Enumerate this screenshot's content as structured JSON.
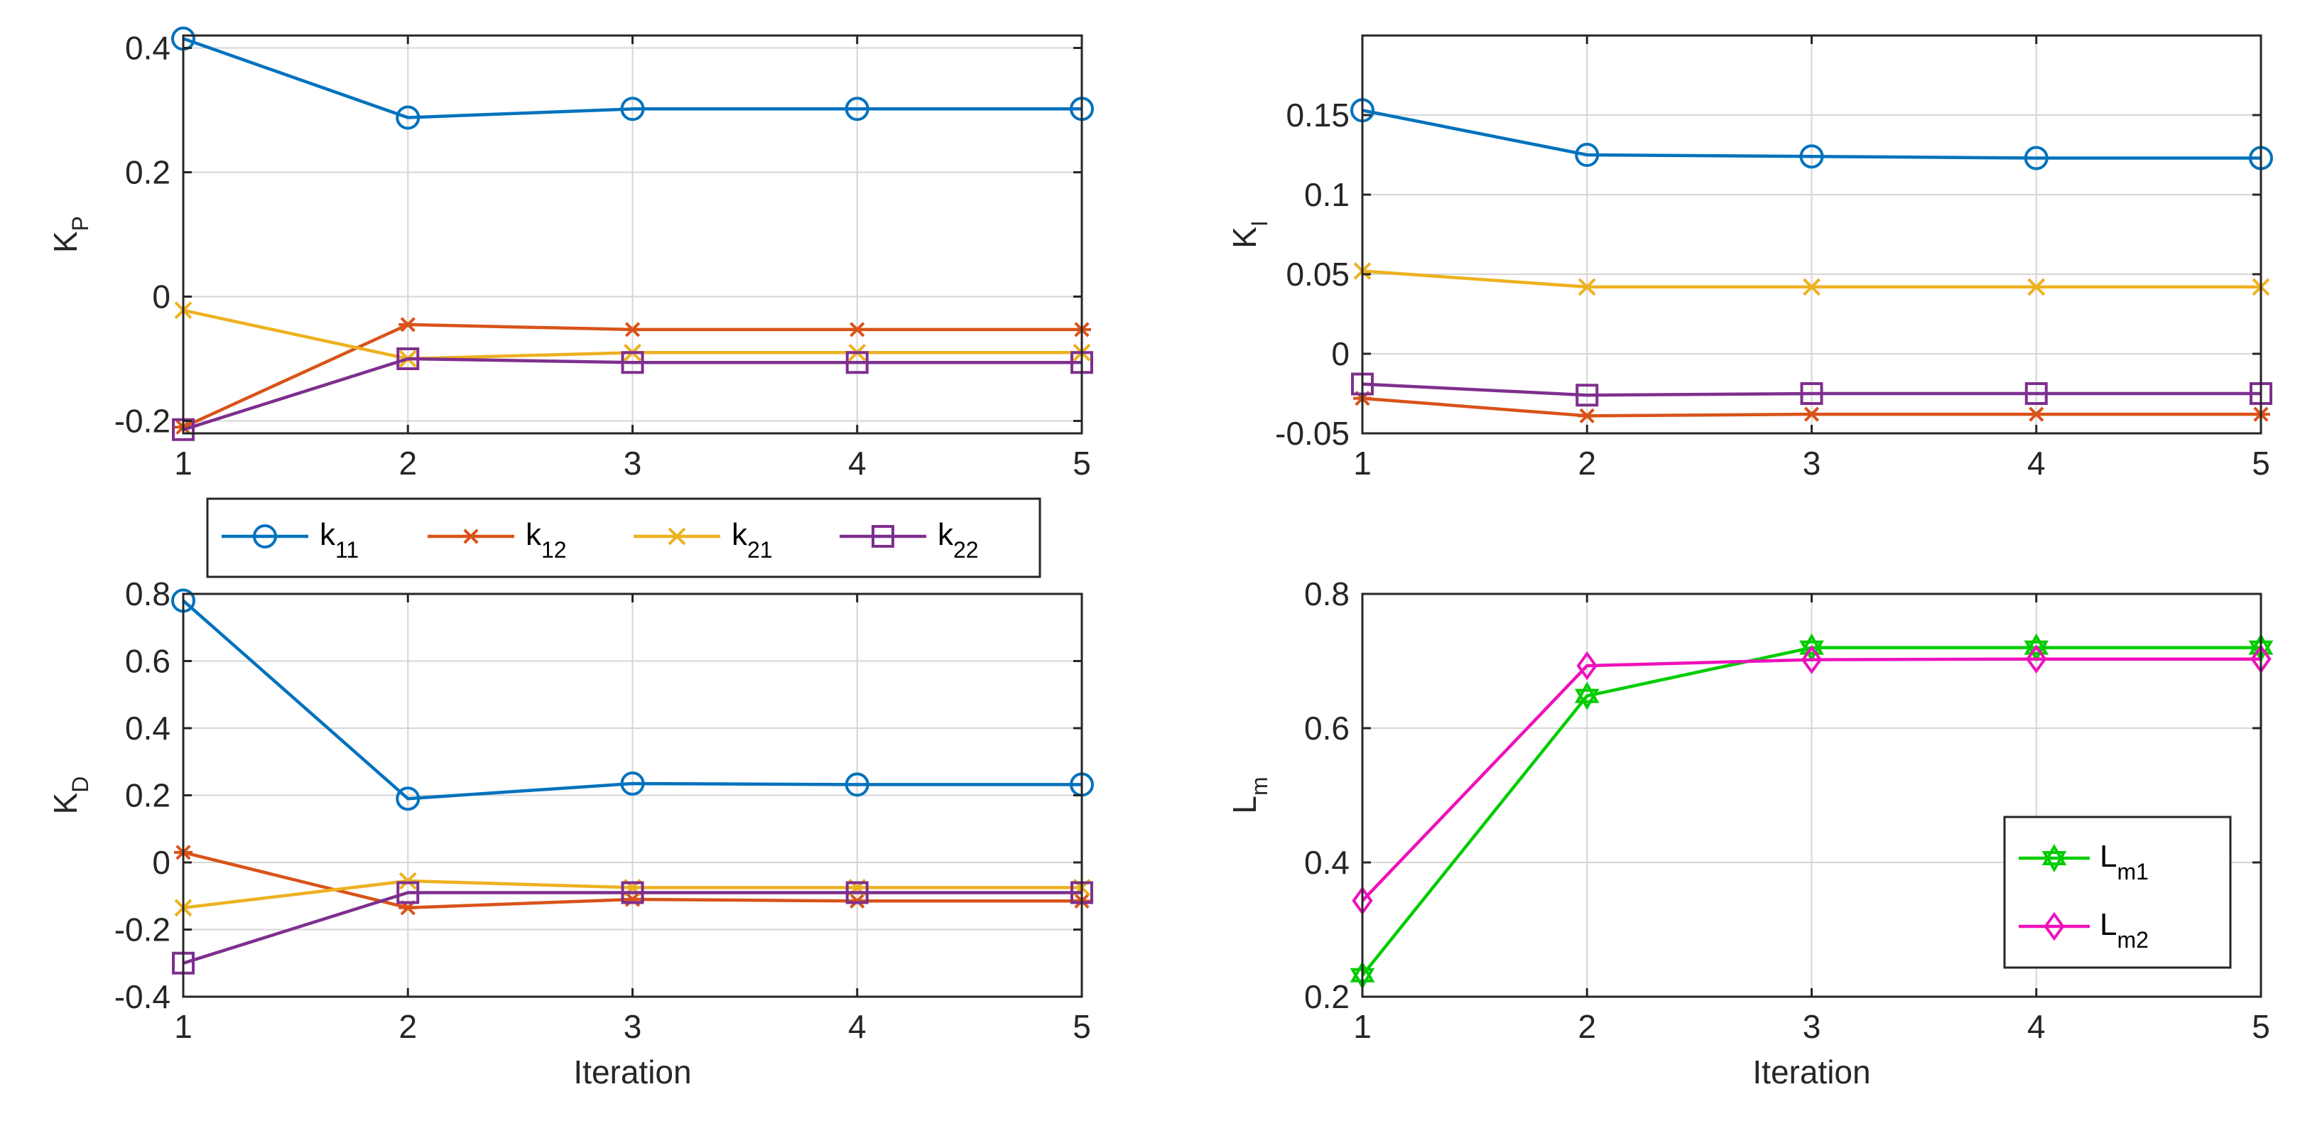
{
  "chart_data": [
    {
      "id": "kp",
      "type": "line",
      "title": "",
      "xlabel": "",
      "ylabel": "K",
      "ylabel_sub": "P",
      "x": [
        1,
        2,
        3,
        4,
        5
      ],
      "xlim": [
        1,
        5
      ],
      "ylim": [
        -0.22,
        0.42
      ],
      "xticks": [
        1,
        2,
        3,
        4,
        5
      ],
      "yticks": [
        -0.2,
        0,
        0.2,
        0.4
      ],
      "ytick_labels": [
        "-0.2",
        "0",
        "0.2",
        "0.4"
      ],
      "grid": true,
      "series": [
        {
          "name": "k11",
          "color": "#0072BD",
          "marker": "circle",
          "values": [
            0.415,
            0.288,
            0.302,
            0.302,
            0.302
          ]
        },
        {
          "name": "k12",
          "color": "#D95319",
          "marker": "asterisk",
          "values": [
            -0.21,
            -0.045,
            -0.053,
            -0.053,
            -0.053
          ]
        },
        {
          "name": "k21",
          "color": "#EDB120",
          "marker": "x",
          "values": [
            -0.022,
            -0.1,
            -0.09,
            -0.09,
            -0.09
          ]
        },
        {
          "name": "k22",
          "color": "#7E2F8E",
          "marker": "square",
          "values": [
            -0.214,
            -0.1,
            -0.106,
            -0.106,
            -0.106
          ]
        }
      ]
    },
    {
      "id": "ki",
      "type": "line",
      "title": "",
      "xlabel": "",
      "ylabel": "K",
      "ylabel_sub": "I",
      "x": [
        1,
        2,
        3,
        4,
        5
      ],
      "xlim": [
        1,
        5
      ],
      "ylim": [
        -0.05,
        0.2
      ],
      "xticks": [
        1,
        2,
        3,
        4,
        5
      ],
      "yticks": [
        -0.05,
        0,
        0.05,
        0.1,
        0.15
      ],
      "ytick_labels": [
        "-0.05",
        "0",
        "0.05",
        "0.1",
        "0.15"
      ],
      "grid": true,
      "series": [
        {
          "name": "k11",
          "color": "#0072BD",
          "marker": "circle",
          "values": [
            0.153,
            0.125,
            0.124,
            0.123,
            0.123
          ]
        },
        {
          "name": "k12",
          "color": "#D95319",
          "marker": "asterisk",
          "values": [
            -0.028,
            -0.039,
            -0.038,
            -0.038,
            -0.038
          ]
        },
        {
          "name": "k21",
          "color": "#EDB120",
          "marker": "x",
          "values": [
            0.052,
            0.042,
            0.042,
            0.042,
            0.042
          ]
        },
        {
          "name": "k22",
          "color": "#7E2F8E",
          "marker": "square",
          "values": [
            -0.019,
            -0.026,
            -0.025,
            -0.025,
            -0.025
          ]
        }
      ]
    },
    {
      "id": "kd",
      "type": "line",
      "title": "",
      "xlabel": "Iteration",
      "ylabel": "K",
      "ylabel_sub": "D",
      "x": [
        1,
        2,
        3,
        4,
        5
      ],
      "xlim": [
        1,
        5
      ],
      "ylim": [
        -0.4,
        0.8
      ],
      "xticks": [
        1,
        2,
        3,
        4,
        5
      ],
      "yticks": [
        -0.4,
        -0.2,
        0,
        0.2,
        0.4,
        0.6,
        0.8
      ],
      "ytick_labels": [
        "-0.4",
        "-0.2",
        "0",
        "0.2",
        "0.4",
        "0.6",
        "0.8"
      ],
      "grid": true,
      "series": [
        {
          "name": "k11",
          "color": "#0072BD",
          "marker": "circle",
          "values": [
            0.78,
            0.19,
            0.235,
            0.232,
            0.232
          ]
        },
        {
          "name": "k12",
          "color": "#D95319",
          "marker": "asterisk",
          "values": [
            0.03,
            -0.135,
            -0.11,
            -0.115,
            -0.115
          ]
        },
        {
          "name": "k21",
          "color": "#EDB120",
          "marker": "x",
          "values": [
            -0.135,
            -0.055,
            -0.075,
            -0.075,
            -0.075
          ]
        },
        {
          "name": "k22",
          "color": "#7E2F8E",
          "marker": "square",
          "values": [
            -0.3,
            -0.09,
            -0.09,
            -0.09,
            -0.09
          ]
        }
      ]
    },
    {
      "id": "lm",
      "type": "line",
      "title": "",
      "xlabel": "Iteration",
      "ylabel": "L",
      "ylabel_sub": "m",
      "x": [
        1,
        2,
        3,
        4,
        5
      ],
      "xlim": [
        1,
        5
      ],
      "ylim": [
        0.2,
        0.8
      ],
      "xticks": [
        1,
        2,
        3,
        4,
        5
      ],
      "yticks": [
        0.2,
        0.4,
        0.6,
        0.8
      ],
      "ytick_labels": [
        "0.2",
        "0.4",
        "0.6",
        "0.8"
      ],
      "grid": true,
      "legend": "bottom-right",
      "series": [
        {
          "name": "Lm1",
          "label": "L",
          "label_sub": "m1",
          "color": "#00CC00",
          "marker": "hexagram",
          "values": [
            0.232,
            0.648,
            0.72,
            0.72,
            0.72
          ]
        },
        {
          "name": "Lm2",
          "label": "L",
          "label_sub": "m2",
          "color": "#EE11BB",
          "marker": "diamond",
          "values": [
            0.343,
            0.693,
            0.702,
            0.703,
            0.703
          ]
        }
      ]
    }
  ],
  "shared_legend": {
    "placement": "between-left-panels",
    "entries": [
      {
        "label": "k",
        "sub": "11",
        "color": "#0072BD",
        "marker": "circle"
      },
      {
        "label": "k",
        "sub": "12",
        "color": "#D95319",
        "marker": "asterisk"
      },
      {
        "label": "k",
        "sub": "21",
        "color": "#EDB120",
        "marker": "x"
      },
      {
        "label": "k",
        "sub": "22",
        "color": "#7E2F8E",
        "marker": "square"
      }
    ]
  }
}
